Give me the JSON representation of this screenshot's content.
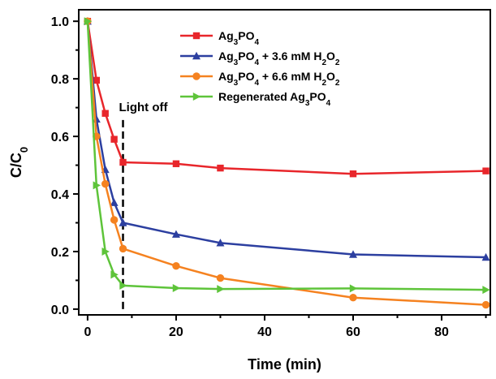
{
  "chart_data": {
    "type": "line",
    "title": "",
    "xlabel": "Time (min)",
    "ylabel": {
      "base": "C/C",
      "sub": "0"
    },
    "xlim": [
      -2,
      91
    ],
    "ylim": [
      -0.02,
      1.04
    ],
    "xticks": [
      0,
      20,
      40,
      60,
      80
    ],
    "xtick_labels": [
      "0",
      "20",
      "40",
      "60",
      "80"
    ],
    "yticks": [
      0.0,
      0.2,
      0.4,
      0.6,
      0.8,
      1.0
    ],
    "ytick_labels": [
      "0.0",
      "0.2",
      "0.4",
      "0.6",
      "0.8",
      "1.0"
    ],
    "grid": false,
    "legend_position": "top-right",
    "series": [
      {
        "name_parts": [
          [
            "Ag",
            ""
          ],
          [
            "3",
            "sub"
          ],
          [
            "PO",
            ""
          ],
          [
            "4",
            "sub"
          ]
        ],
        "color": "#e8262b",
        "marker": "square",
        "x": [
          0,
          2,
          4,
          6,
          8,
          20,
          30,
          60,
          90
        ],
        "y": [
          1.0,
          0.795,
          0.68,
          0.59,
          0.51,
          0.505,
          0.49,
          0.47,
          0.48
        ]
      },
      {
        "name_parts": [
          [
            "Ag",
            ""
          ],
          [
            "3",
            "sub"
          ],
          [
            "PO",
            ""
          ],
          [
            "4",
            "sub"
          ],
          [
            " + 3.6 mM H",
            ""
          ],
          [
            "2",
            "sub"
          ],
          [
            "O",
            ""
          ],
          [
            "2",
            "sub"
          ]
        ],
        "color": "#2c3fa0",
        "marker": "triangle-up",
        "x": [
          0,
          2,
          4,
          6,
          8,
          20,
          30,
          60,
          90
        ],
        "y": [
          1.0,
          0.66,
          0.485,
          0.37,
          0.3,
          0.26,
          0.23,
          0.19,
          0.18
        ]
      },
      {
        "name_parts": [
          [
            "Ag",
            ""
          ],
          [
            "3",
            "sub"
          ],
          [
            "PO",
            ""
          ],
          [
            "4",
            "sub"
          ],
          [
            " + 6.6 mM H",
            ""
          ],
          [
            "2",
            "sub"
          ],
          [
            "O",
            ""
          ],
          [
            "2",
            "sub"
          ]
        ],
        "color": "#f58220",
        "marker": "circle",
        "x": [
          0,
          2,
          4,
          6,
          8,
          20,
          30,
          60,
          90
        ],
        "y": [
          1.0,
          0.6,
          0.435,
          0.31,
          0.21,
          0.15,
          0.108,
          0.04,
          0.015
        ]
      },
      {
        "name_parts": [
          [
            "Regenerated Ag",
            ""
          ],
          [
            "3",
            "sub"
          ],
          [
            "PO",
            ""
          ],
          [
            "4",
            "sub"
          ]
        ],
        "color": "#5ec43a",
        "marker": "triangle-right",
        "x": [
          0,
          2,
          4,
          6,
          8,
          20,
          30,
          60,
          90
        ],
        "y": [
          1.0,
          0.43,
          0.2,
          0.12,
          0.082,
          0.073,
          0.07,
          0.072,
          0.067
        ]
      }
    ],
    "annotations": [
      {
        "text": "Light off",
        "x": 8,
        "style": "dashed-vertical",
        "y_from": 0.0,
        "y_to": 0.66
      }
    ]
  }
}
